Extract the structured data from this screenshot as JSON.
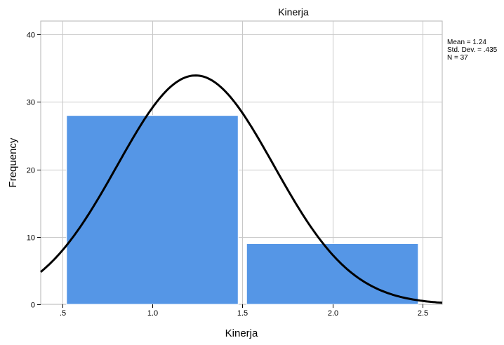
{
  "chart_data": {
    "type": "bar",
    "title": "Kinerja",
    "xlabel": "Kinerja",
    "ylabel": "Frequency",
    "bins": [
      {
        "from": 0.5,
        "to": 1.5,
        "count": 28
      },
      {
        "from": 1.5,
        "to": 2.5,
        "count": 9
      }
    ],
    "xlim": [
      0.38,
      2.61
    ],
    "ylim": [
      0,
      42
    ],
    "x_ticks": [
      ".5",
      "1.0",
      "1.5",
      "2.0",
      "2.5"
    ],
    "x_tick_values": [
      0.5,
      1.0,
      1.5,
      2.0,
      2.5
    ],
    "y_ticks": [
      "0",
      "10",
      "20",
      "30",
      "40"
    ],
    "y_tick_values": [
      0,
      10,
      20,
      30,
      40
    ],
    "normal_curve": {
      "mean": 1.24,
      "std": 0.435,
      "n": 37,
      "bin_width": 1.0
    },
    "stats": [
      "Mean = 1.24",
      "Std. Dev. = .435",
      "N = 37"
    ],
    "legend_position": "top-right",
    "grid": true,
    "colors": {
      "bar": "#5596e6",
      "bar_edge": "#ffffff",
      "curve": "#000000",
      "grid": "#c8c8c8"
    }
  }
}
